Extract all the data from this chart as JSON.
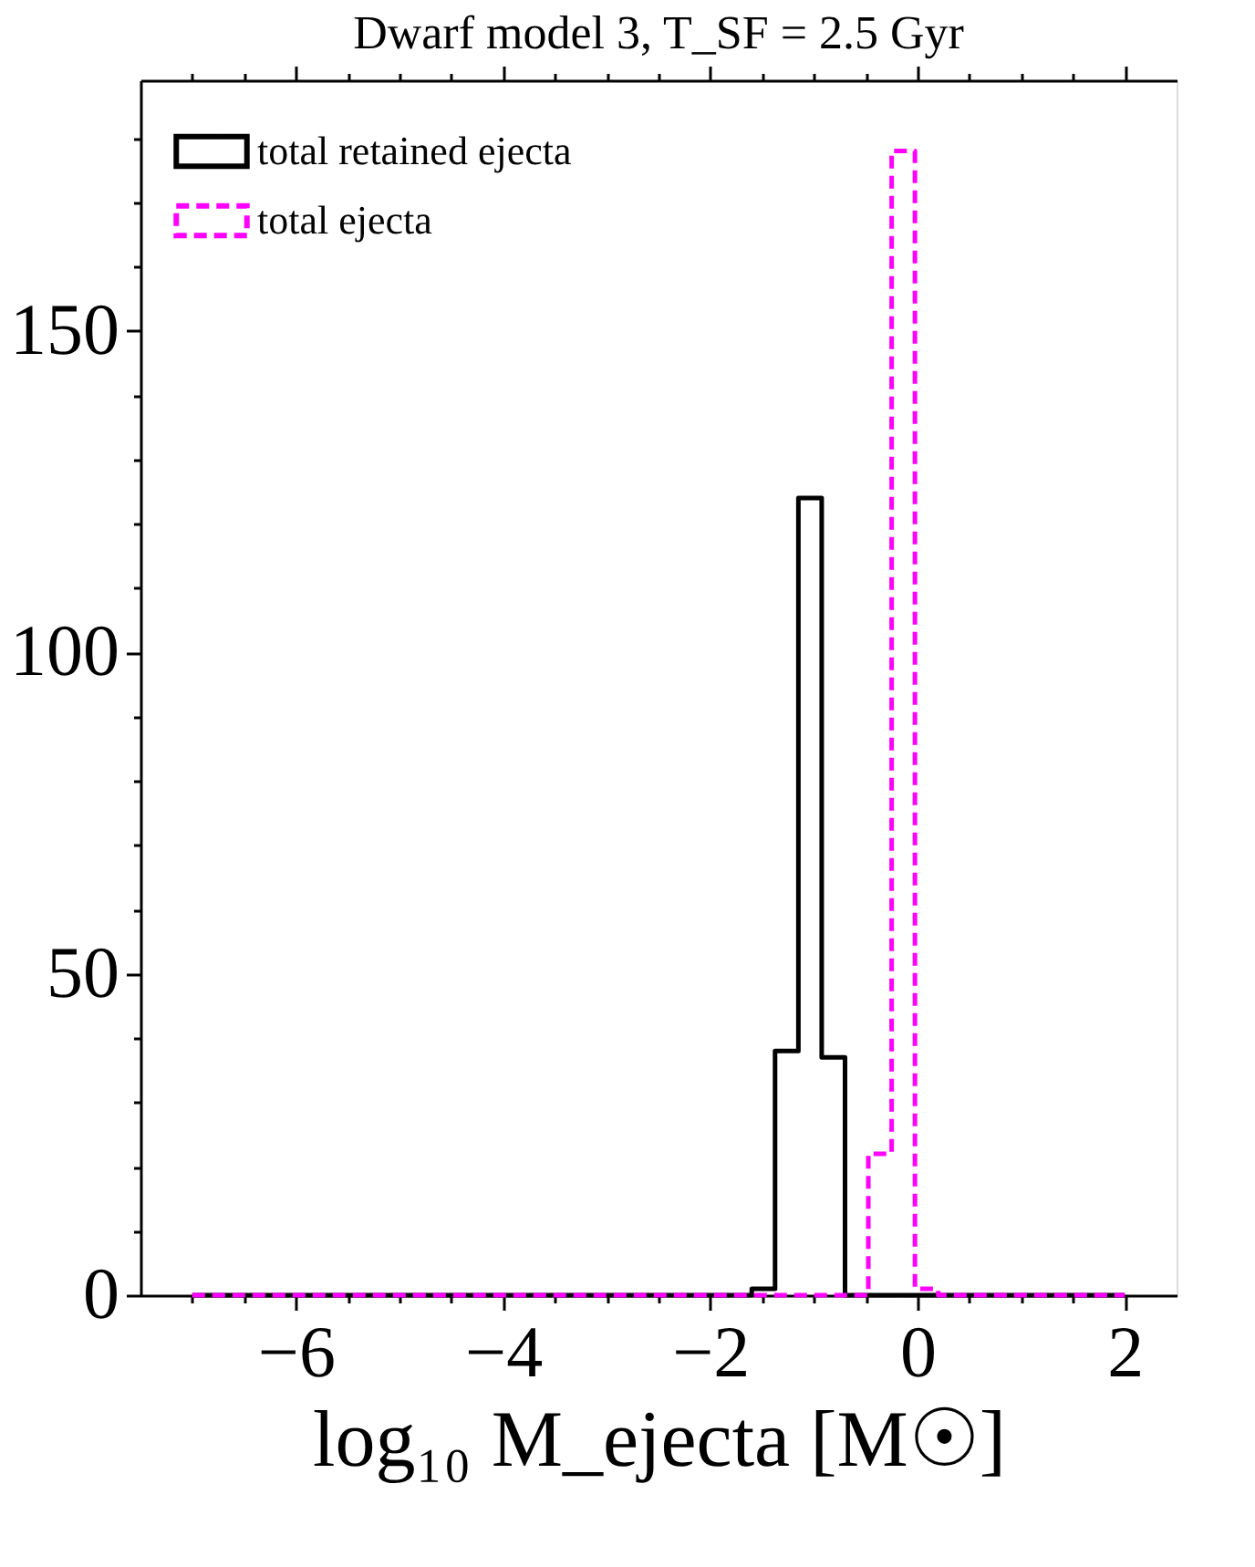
{
  "chart_data": {
    "type": "histogram",
    "title": "Dwarf model 3, T_SF = 2.5 Gyr",
    "xlabel": "log₁₀ M_ejecta [M☉]",
    "bins": [
      -7,
      -6.775,
      -6.55,
      -6.325,
      -6.1,
      -5.875,
      -5.65,
      -5.425,
      -5.2,
      -4.975,
      -4.75,
      -4.525,
      -4.3,
      -4.075,
      -3.85,
      -3.625,
      -3.4,
      -3.175,
      -2.95,
      -2.725,
      -2.5,
      -2.275,
      -2.05,
      -1.825,
      -1.6,
      -1.375,
      -1.15,
      -0.925,
      -0.7,
      -0.475,
      -0.25,
      -0.025,
      0.2,
      0.425,
      0.65,
      0.875,
      1.1,
      1.325,
      1.55,
      1.775,
      2
    ],
    "series": [
      {
        "name": "total retained ejecta",
        "color": "#000000",
        "line_style": "solid",
        "values": [
          0,
          0,
          0,
          0,
          0,
          0,
          0,
          0,
          0,
          0,
          0,
          0,
          0,
          0,
          0,
          0,
          0,
          0,
          0,
          0,
          0,
          0,
          0,
          0,
          1,
          38,
          124,
          37,
          0,
          0,
          0,
          0,
          0,
          0,
          0,
          0,
          0,
          0,
          0,
          0
        ]
      },
      {
        "name": "total ejecta",
        "color": "#ff00ff",
        "line_style": "dashed",
        "values": [
          0,
          0,
          0,
          0,
          0,
          0,
          0,
          0,
          0,
          0,
          0,
          0,
          0,
          0,
          0,
          0,
          0,
          0,
          0,
          0,
          0,
          0,
          0,
          0,
          0,
          0,
          0,
          0,
          0,
          22,
          178,
          1,
          0,
          0,
          0,
          0,
          0,
          0,
          0,
          0
        ]
      }
    ],
    "xlim": [
      -7.5,
      2.5
    ],
    "ylim": [
      0,
      189
    ],
    "xticks": [
      {
        "value": -7,
        "label": null
      },
      {
        "value": -6.5,
        "label": null
      },
      {
        "value": -6,
        "label": "−6"
      },
      {
        "value": -5.5,
        "label": null
      },
      {
        "value": -5,
        "label": null
      },
      {
        "value": -4.5,
        "label": null
      },
      {
        "value": -4,
        "label": "−4"
      },
      {
        "value": -3.5,
        "label": null
      },
      {
        "value": -3,
        "label": null
      },
      {
        "value": -2.5,
        "label": null
      },
      {
        "value": -2,
        "label": "−2"
      },
      {
        "value": -1.5,
        "label": null
      },
      {
        "value": -1,
        "label": null
      },
      {
        "value": -0.5,
        "label": null
      },
      0,
      {
        "value": 0.5,
        "label": null
      },
      {
        "value": 1,
        "label": null
      },
      {
        "value": 1.5,
        "label": null
      },
      2
    ],
    "yticks": [
      0,
      {
        "value": 10,
        "label": null
      },
      {
        "value": 20,
        "label": null
      },
      {
        "value": 30,
        "label": null
      },
      {
        "value": 40,
        "label": null
      },
      50,
      {
        "value": 60,
        "label": null
      },
      {
        "value": 70,
        "label": null
      },
      {
        "value": 80,
        "label": null
      },
      {
        "value": 90,
        "label": null
      },
      100,
      {
        "value": 110,
        "label": null
      },
      {
        "value": 120,
        "label": null
      },
      {
        "value": 130,
        "label": null
      },
      {
        "value": 140,
        "label": null
      },
      150,
      {
        "value": 160,
        "label": null
      },
      {
        "value": 170,
        "label": null
      },
      {
        "value": 180,
        "label": null
      }
    ],
    "grid": false,
    "legend": "top left"
  }
}
